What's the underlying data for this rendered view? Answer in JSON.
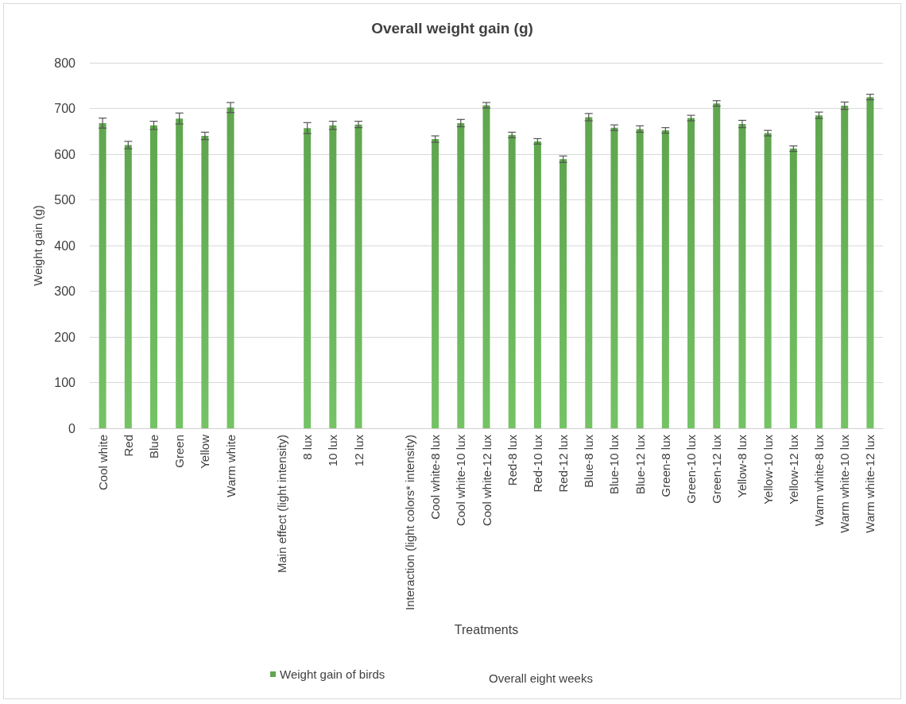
{
  "chart_data": {
    "type": "bar",
    "title": "Overall weight gain (g)",
    "xlabel": "Treatments",
    "ylabel": "Weight gain (g)",
    "categories": [
      "Cool white",
      "Red",
      "Blue",
      "Green",
      "Yellow",
      "Warm white",
      null,
      "Main effect (light intensity)",
      "8 lux",
      "10 lux",
      "12 lux",
      null,
      "Interaction (light colors* intensity)",
      "Cool white-8 lux",
      "Cool white-10 lux",
      "Cool white-12 lux",
      "Red-8 lux",
      "Red-10 lux",
      "Red-12 lux",
      "Blue-8 lux",
      "Blue-10 lux",
      "Blue-12 lux",
      "Green-8 lux",
      "Green-10 lux",
      "Green-12 lux",
      "Yellow-8 lux",
      "Yellow-10 lux",
      "Yellow-12 lux",
      "Warm white-8 lux",
      "Warm white-10 lux",
      "Warm white-12 lux"
    ],
    "series": [
      {
        "name": "Weight gain of birds",
        "color": "#5fa64e",
        "values": [
          668,
          620,
          663,
          678,
          640,
          702,
          null,
          null,
          657,
          663,
          665,
          null,
          null,
          633,
          668,
          707,
          642,
          628,
          589,
          681,
          658,
          655,
          652,
          679,
          711,
          666,
          646,
          612,
          685,
          706,
          725
        ],
        "errors": [
          11,
          8,
          9,
          12,
          8,
          11,
          null,
          null,
          12,
          9,
          7,
          null,
          null,
          7,
          8,
          6,
          6,
          6,
          7,
          8,
          6,
          7,
          6,
          6,
          6,
          8,
          6,
          6,
          7,
          8,
          6
        ]
      }
    ],
    "ylim": [
      0,
      800
    ],
    "yticks": [
      0,
      100,
      200,
      300,
      400,
      500,
      600,
      700,
      800
    ],
    "grid": "y",
    "legend": "bottom",
    "annotations": [
      "Overall eight weeks"
    ]
  }
}
